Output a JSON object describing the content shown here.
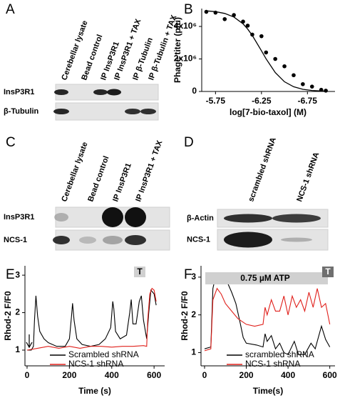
{
  "blots": [
    {
      "panel": "A",
      "columns": [
        "Cerebellar lysate",
        "Bead control",
        "IP InsP3R1",
        "IP InsP3R1 + TAX",
        "IP β-Tubulin",
        "IP β-Tubulin + TAX"
      ],
      "rows": [
        "InsP3R1",
        "β-Tubulin"
      ]
    },
    {
      "panel": "C",
      "columns": [
        "Cerebellar lysate",
        "Bead control",
        "IP InsP3R1",
        "IP InsP3R1 + TAX"
      ],
      "rows": [
        "InsP3R1",
        "NCS-1"
      ]
    },
    {
      "panel": "D",
      "columns": [
        "scrambled shRNA",
        "NCS-1 shRNA"
      ],
      "rows": [
        "β-Actin",
        "NCS-1"
      ]
    }
  ],
  "chart_data": [
    {
      "type": "scatter",
      "panel": "B",
      "x_label": "log[7-bio-taxol] (M)",
      "y_label": "Phage titer (pfu)",
      "x": [
        -5.65,
        -5.75,
        -5.85,
        -5.95,
        -6.05,
        -6.1,
        -6.15,
        -6.25,
        -6.3,
        -6.4,
        -6.5,
        -6.6,
        -6.7,
        -6.8,
        -6.9,
        -6.95
      ],
      "values": [
        4900000,
        4850000,
        4450000,
        4700000,
        4300000,
        4050000,
        3500000,
        3400000,
        2400000,
        2000000,
        1550000,
        1000000,
        450000,
        300000,
        100000,
        50000
      ],
      "fit": [
        4960000,
        4910000,
        4800000,
        4580000,
        4160000,
        3840000,
        3450000,
        2500000,
        2010000,
        1160000,
        600000,
        290000,
        130000,
        60000,
        30000,
        20000
      ],
      "color": "#000000",
      "xlim": [
        -5.6,
        -7.05
      ],
      "xticks": [
        -5.75,
        -6.25,
        -6.75
      ],
      "ylim": [
        0,
        5100000
      ],
      "yticks": [
        0,
        {
          "value": 2000000,
          "label": "2x10⁶"
        },
        {
          "value": 4000000,
          "label": "4x10⁶"
        }
      ]
    },
    {
      "type": "line",
      "panel": "E",
      "x_label": "Time (s)",
      "y_label": "Rhod-2 F/F0",
      "annotations": [
        "T"
      ],
      "xlim": [
        -10,
        650
      ],
      "xticks": [
        0,
        200,
        400,
        600
      ],
      "ylim": [
        0.58,
        3.25
      ],
      "yticks": [
        1,
        2,
        3
      ],
      "series": [
        {
          "name": "Scrambled shRNA",
          "color": "#000000",
          "x": [
            0,
            20,
            30,
            35,
            42,
            50,
            60,
            80,
            100,
            140,
            180,
            200,
            210,
            215,
            222,
            235,
            260,
            300,
            340,
            370,
            395,
            405,
            410,
            418,
            440,
            470,
            485,
            492,
            500,
            515,
            530,
            540,
            550,
            565,
            575,
            585,
            600,
            610
          ],
          "values": [
            1.0,
            1.0,
            1.1,
            1.8,
            2.45,
            1.9,
            1.5,
            1.3,
            1.2,
            1.1,
            1.1,
            1.3,
            1.9,
            2.25,
            1.8,
            1.3,
            1.15,
            1.1,
            1.15,
            1.3,
            1.6,
            2.3,
            2.1,
            1.5,
            1.3,
            1.4,
            2.0,
            2.35,
            1.7,
            1.7,
            2.3,
            2.45,
            1.8,
            1.3,
            2.0,
            2.6,
            2.5,
            2.2
          ]
        },
        {
          "name": "NCS-1 shRNA",
          "color": "#e0201b",
          "x": [
            0,
            50,
            100,
            150,
            200,
            250,
            300,
            350,
            400,
            450,
            500,
            550,
            565,
            570,
            580,
            590,
            600,
            610
          ],
          "values": [
            1.0,
            1.05,
            1.1,
            1.05,
            1.1,
            1.05,
            1.1,
            1.1,
            1.08,
            1.1,
            1.1,
            1.12,
            1.1,
            1.8,
            2.5,
            2.65,
            2.6,
            2.3
          ]
        }
      ]
    },
    {
      "type": "line",
      "panel": "F",
      "x_label": "Time(s)",
      "y_label": "Rhod-2 F/F0",
      "annotations": [
        "0.75 µM ATP",
        "T"
      ],
      "xlim": [
        -17,
        625
      ],
      "xticks": [
        0,
        200,
        400,
        600
      ],
      "ylim": [
        0.65,
        3.3
      ],
      "yticks": [
        1,
        2,
        3
      ],
      "series": [
        {
          "name": "scrambled shRNA",
          "color": "#000000",
          "x": [
            0,
            30,
            40,
            50,
            80,
            110,
            130,
            150,
            170,
            185,
            200,
            250,
            280,
            290,
            300,
            320,
            340,
            360,
            380,
            400,
            430,
            450,
            480,
            510,
            530,
            560,
            580,
            600
          ],
          "values": [
            1.1,
            1.15,
            2.7,
            2.95,
            2.95,
            2.85,
            2.6,
            2.3,
            1.8,
            1.4,
            1.25,
            1.2,
            1.15,
            1.5,
            1.3,
            1.45,
            1.1,
            1.25,
            1.0,
            0.95,
            1.3,
            0.95,
            0.95,
            1.25,
            1.1,
            1.7,
            1.35,
            1.15
          ]
        },
        {
          "name": "NCS-1 shRNA",
          "color": "#e0201b",
          "x": [
            0,
            30,
            40,
            60,
            80,
            100,
            130,
            160,
            200,
            240,
            280,
            290,
            300,
            320,
            340,
            360,
            380,
            400,
            420,
            440,
            460,
            480,
            500,
            520,
            540,
            560,
            580,
            600
          ],
          "values": [
            1.05,
            1.1,
            2.4,
            2.7,
            2.55,
            2.3,
            2.1,
            1.9,
            1.75,
            1.7,
            1.75,
            2.2,
            2.0,
            2.4,
            2.1,
            2.1,
            2.5,
            2.0,
            2.5,
            2.2,
            2.4,
            2.1,
            2.6,
            2.2,
            2.7,
            2.2,
            2.3,
            1.75
          ]
        }
      ]
    }
  ]
}
